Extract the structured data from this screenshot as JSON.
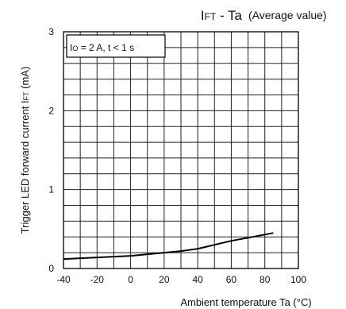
{
  "chart_data": {
    "type": "line",
    "title": "IFT - Ta",
    "title_main": "I",
    "title_sub": "FT",
    "title_rest": " - Ta",
    "subtitle": "(Average value)",
    "annotation": "IO = 2 A, t < 1 s",
    "annotation_parts": {
      "a": "I",
      "a_sub": "O",
      "b": " = 2 A, t < 1 s"
    },
    "xlabel": "Ambient temperature Ta (°C)",
    "ylabel": "Trigger LED forward current IFT (mA)",
    "ylabel_parts": {
      "a": "Trigger LED forward current I",
      "a_sub": "FT",
      "b": " (mA)"
    },
    "xlim": [
      -40,
      100
    ],
    "ylim": [
      0,
      3
    ],
    "x_major_ticks": [
      -40,
      -20,
      0,
      20,
      40,
      60,
      80,
      100
    ],
    "x_minor_step": 10,
    "y_major_ticks": [
      0,
      1,
      2,
      3
    ],
    "y_minor_step": 0.2,
    "x_tick_labels": [
      "-40",
      "-20",
      "0",
      "20",
      "40",
      "60",
      "80",
      "100"
    ],
    "y_tick_labels": [
      "0",
      "1",
      "2",
      "3"
    ],
    "grid": true,
    "series": [
      {
        "x": [
          -40,
          -20,
          0,
          20,
          30,
          40,
          50,
          60,
          70,
          80,
          85
        ],
        "y": [
          0.12,
          0.14,
          0.16,
          0.2,
          0.22,
          0.25,
          0.3,
          0.35,
          0.39,
          0.43,
          0.45
        ]
      }
    ]
  }
}
